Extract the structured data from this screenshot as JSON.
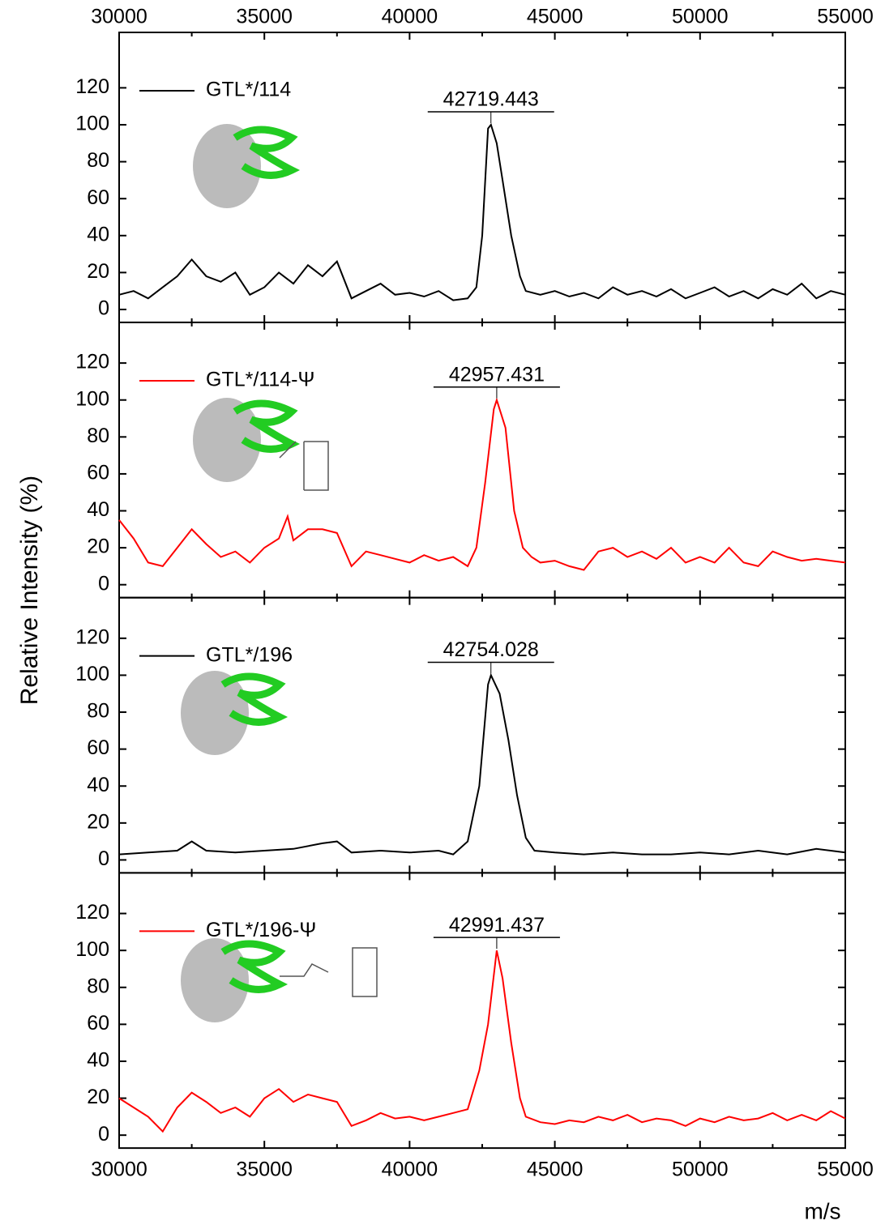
{
  "chart_data": [
    {
      "type": "line",
      "ylabel": "Relative Intensity (%)",
      "annotation": "42719.443",
      "xlim": [
        30000,
        55000
      ],
      "xticks": [
        30000,
        35000,
        40000,
        45000,
        50000,
        55000
      ],
      "ylim": [
        -7,
        150
      ],
      "yticks": [
        0,
        20,
        40,
        60,
        80,
        100,
        120
      ],
      "x": [
        30000,
        30500,
        31000,
        31500,
        32000,
        32500,
        33000,
        33500,
        34000,
        34500,
        35000,
        35500,
        36000,
        36500,
        37000,
        37500,
        38000,
        38500,
        39000,
        39500,
        40000,
        40500,
        41000,
        41500,
        42000,
        42300,
        42500,
        42700,
        42800,
        43000,
        43200,
        43500,
        43800,
        44000,
        44500,
        45000,
        45500,
        46000,
        46500,
        47000,
        47500,
        48000,
        48500,
        49000,
        49500,
        50000,
        50500,
        51000,
        51500,
        52000,
        52500,
        53000,
        53500,
        54000,
        54500,
        55000
      ],
      "series": [
        {
          "name": "GTL*/114",
          "color": "#000000",
          "values": [
            8,
            10,
            6,
            12,
            18,
            27,
            18,
            15,
            20,
            8,
            12,
            20,
            14,
            24,
            18,
            26,
            6,
            10,
            14,
            8,
            9,
            7,
            10,
            5,
            6,
            12,
            40,
            98,
            100,
            90,
            70,
            40,
            18,
            10,
            8,
            10,
            7,
            9,
            6,
            12,
            8,
            10,
            7,
            11,
            6,
            9,
            12,
            7,
            10,
            6,
            11,
            8,
            14,
            6,
            10,
            8
          ]
        }
      ]
    },
    {
      "type": "line",
      "annotation": "42957.431",
      "xlim": [
        30000,
        55000
      ],
      "xticks": [
        30000,
        35000,
        40000,
        45000,
        50000,
        55000
      ],
      "ylim": [
        -7,
        142
      ],
      "yticks": [
        0,
        20,
        40,
        60,
        80,
        100,
        120
      ],
      "x": [
        30000,
        30500,
        31000,
        31500,
        32000,
        32500,
        33000,
        33500,
        34000,
        34500,
        35000,
        35500,
        35800,
        36000,
        36500,
        37000,
        37500,
        38000,
        38500,
        39000,
        39500,
        40000,
        40500,
        41000,
        41500,
        42000,
        42300,
        42600,
        42900,
        43000,
        43300,
        43600,
        43900,
        44200,
        44500,
        45000,
        45500,
        46000,
        46500,
        47000,
        47500,
        48000,
        48500,
        49000,
        49500,
        50000,
        50500,
        51000,
        51500,
        52000,
        52500,
        53000,
        53500,
        54000,
        54500,
        55000
      ],
      "series": [
        {
          "name": "GTL*/114-Ψ",
          "color": "#ff0000",
          "values": [
            35,
            25,
            12,
            10,
            20,
            30,
            22,
            15,
            18,
            12,
            20,
            25,
            37,
            24,
            30,
            30,
            28,
            10,
            18,
            16,
            14,
            12,
            16,
            13,
            15,
            10,
            20,
            55,
            95,
            100,
            85,
            40,
            20,
            15,
            12,
            13,
            10,
            8,
            18,
            20,
            15,
            18,
            14,
            20,
            12,
            15,
            12,
            20,
            12,
            10,
            18,
            15,
            13,
            14,
            13,
            12
          ]
        }
      ]
    },
    {
      "type": "line",
      "annotation": "42754.028",
      "xlim": [
        30000,
        55000
      ],
      "xticks": [
        30000,
        35000,
        40000,
        45000,
        50000,
        55000
      ],
      "ylim": [
        -7,
        142
      ],
      "yticks": [
        0,
        20,
        40,
        60,
        80,
        100,
        120
      ],
      "x": [
        30000,
        31000,
        32000,
        32500,
        33000,
        34000,
        35000,
        36000,
        37000,
        37500,
        38000,
        39000,
        40000,
        41000,
        41500,
        42000,
        42400,
        42700,
        42800,
        43100,
        43400,
        43700,
        44000,
        44300,
        45000,
        46000,
        47000,
        48000,
        49000,
        50000,
        51000,
        52000,
        53000,
        54000,
        55000
      ],
      "series": [
        {
          "name": "GTL*/196",
          "color": "#000000",
          "values": [
            3,
            4,
            5,
            10,
            5,
            4,
            5,
            6,
            9,
            10,
            4,
            5,
            4,
            5,
            3,
            10,
            40,
            95,
            100,
            90,
            65,
            35,
            12,
            5,
            4,
            3,
            4,
            3,
            3,
            4,
            3,
            5,
            3,
            6,
            4
          ]
        }
      ]
    },
    {
      "type": "line",
      "annotation": "42991.437",
      "xlabel": "m/s",
      "xlim": [
        30000,
        55000
      ],
      "xticks": [
        30000,
        35000,
        40000,
        45000,
        50000,
        55000
      ],
      "ylim": [
        -7,
        142
      ],
      "yticks": [
        0,
        20,
        40,
        60,
        80,
        100,
        120
      ],
      "x": [
        30000,
        30500,
        31000,
        31500,
        32000,
        32500,
        33000,
        33500,
        34000,
        34500,
        35000,
        35500,
        36000,
        36500,
        37000,
        37500,
        38000,
        38500,
        39000,
        39500,
        40000,
        40500,
        41000,
        41500,
        42000,
        42400,
        42700,
        43000,
        43200,
        43500,
        43800,
        44000,
        44500,
        45000,
        45500,
        46000,
        46500,
        47000,
        47500,
        48000,
        48500,
        49000,
        49500,
        50000,
        50500,
        51000,
        51500,
        52000,
        52500,
        53000,
        53500,
        54000,
        54500,
        55000
      ],
      "series": [
        {
          "name": "GTL*/196-Ψ",
          "color": "#ff0000",
          "values": [
            20,
            15,
            10,
            2,
            15,
            23,
            18,
            12,
            15,
            10,
            20,
            25,
            18,
            22,
            20,
            18,
            5,
            8,
            12,
            9,
            10,
            8,
            10,
            12,
            14,
            35,
            60,
            100,
            85,
            50,
            20,
            10,
            7,
            6,
            8,
            7,
            10,
            8,
            11,
            7,
            9,
            8,
            5,
            9,
            7,
            10,
            8,
            9,
            12,
            8,
            11,
            8,
            13,
            9
          ]
        }
      ]
    }
  ]
}
